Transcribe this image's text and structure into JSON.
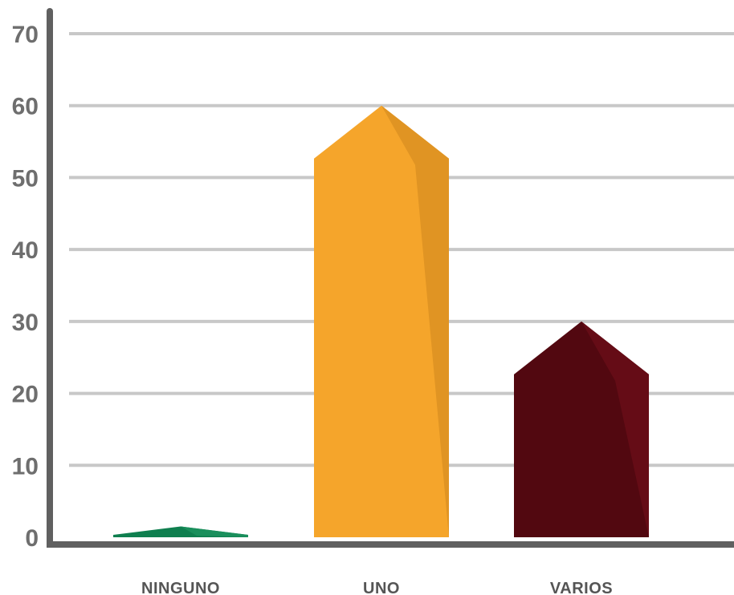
{
  "chart_data": {
    "type": "bar",
    "title": "",
    "xlabel": "",
    "ylabel": "",
    "categories": [
      "NINGUNO",
      "UNO",
      "VARIOS"
    ],
    "values": [
      1.5,
      60,
      30
    ],
    "ylim": [
      0,
      70
    ],
    "yticks": [
      0,
      10,
      20,
      30,
      40,
      50,
      60,
      70
    ],
    "grid": true,
    "colors": {
      "NINGUNO": {
        "main": "#0f7f4f",
        "shade": "#1a8f5c"
      },
      "UNO": {
        "main": "#f5a52b",
        "shade": "#e09423"
      },
      "VARIOS": {
        "main": "#520810",
        "shade": "#650c16"
      },
      "gridline": "#c8c8c8",
      "axis": "#606060"
    }
  }
}
